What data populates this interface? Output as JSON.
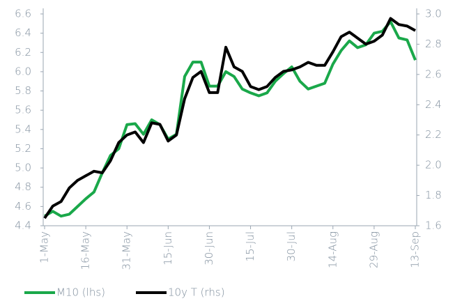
{
  "chart_data": {
    "type": "line",
    "categories": [
      "1-May",
      null,
      null,
      null,
      null,
      "16-May",
      null,
      null,
      null,
      null,
      "31-May",
      null,
      null,
      null,
      null,
      "15-Jun",
      null,
      null,
      null,
      null,
      "30-Jun",
      null,
      null,
      null,
      null,
      "15-Jul",
      null,
      null,
      null,
      null,
      "30-Jul",
      null,
      null,
      null,
      null,
      "14-Aug",
      null,
      null,
      null,
      null,
      "29-Aug",
      null,
      null,
      null,
      null,
      "13-Sep"
    ],
    "series": [
      {
        "name": "M10 (lhs)",
        "color": "#1aa84a",
        "axis": "y",
        "values": [
          4.5,
          4.55,
          4.5,
          4.52,
          4.6,
          4.68,
          4.75,
          4.95,
          5.13,
          5.2,
          5.45,
          5.46,
          5.35,
          5.5,
          5.45,
          5.3,
          5.35,
          5.95,
          6.1,
          6.1,
          5.85,
          5.85,
          6.0,
          5.95,
          5.82,
          5.78,
          5.75,
          5.78,
          5.9,
          5.98,
          6.05,
          5.9,
          5.82,
          5.85,
          5.88,
          6.08,
          6.22,
          6.32,
          6.25,
          6.28,
          6.4,
          6.42,
          6.52,
          6.35,
          6.33,
          6.12
        ]
      },
      {
        "name": "10y T (rhs)",
        "color": "#000000",
        "axis": "y2",
        "values": [
          1.65,
          1.73,
          1.76,
          1.85,
          1.9,
          1.93,
          1.96,
          1.95,
          2.03,
          2.15,
          2.2,
          2.22,
          2.15,
          2.28,
          2.27,
          2.16,
          2.2,
          2.44,
          2.58,
          2.62,
          2.48,
          2.48,
          2.78,
          2.65,
          2.62,
          2.52,
          2.5,
          2.52,
          2.58,
          2.62,
          2.63,
          2.65,
          2.68,
          2.66,
          2.66,
          2.75,
          2.85,
          2.88,
          2.84,
          2.8,
          2.82,
          2.86,
          2.97,
          2.93,
          2.92,
          2.89
        ]
      }
    ],
    "ylim": [
      4.4,
      6.6
    ],
    "yticks": [
      4.4,
      4.6,
      4.8,
      {
        "value": 5,
        "label": "5.0"
      },
      5.2,
      5.4,
      5.6,
      5.8,
      {
        "value": 6,
        "label": "6.0"
      },
      6.2,
      6.4,
      6.6
    ],
    "y2lim": [
      1.6,
      3.0
    ],
    "y2ticks": [
      1.6,
      1.8,
      {
        "value": 2,
        "label": "2.0"
      },
      2.2,
      2.4,
      2.6,
      2.8,
      {
        "value": 3,
        "label": "3.0"
      }
    ],
    "grid": false,
    "legend": "bottom"
  }
}
